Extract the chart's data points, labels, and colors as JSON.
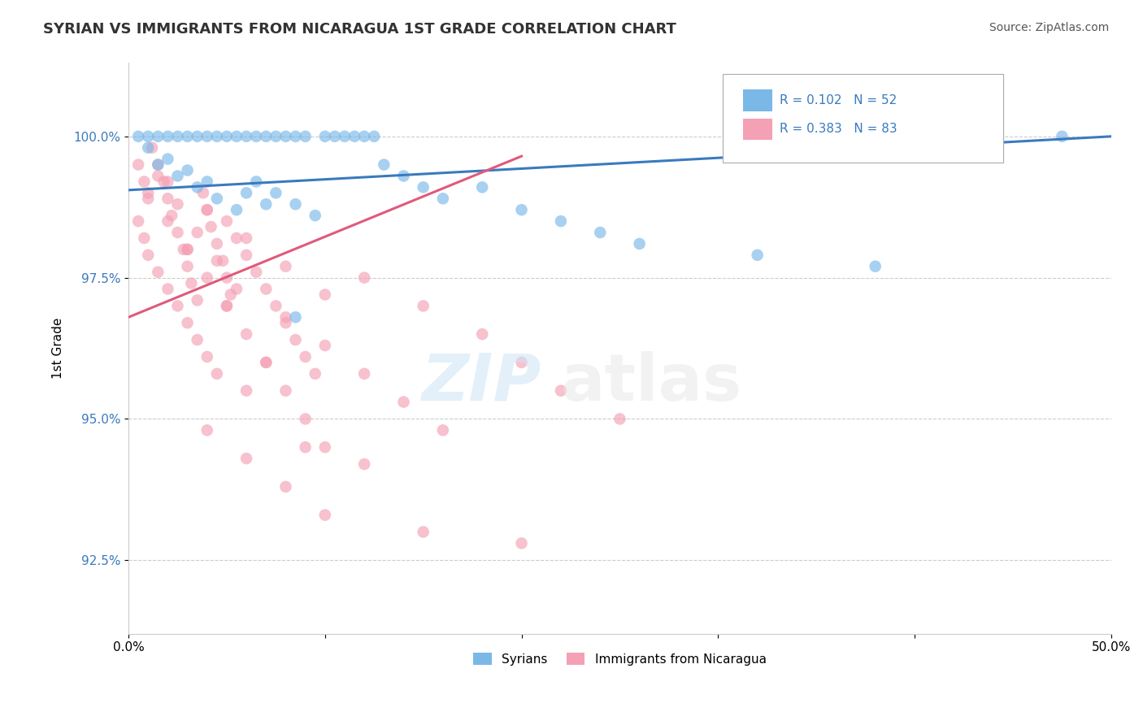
{
  "title": "SYRIAN VS IMMIGRANTS FROM NICARAGUA 1ST GRADE CORRELATION CHART",
  "source": "Source: ZipAtlas.com",
  "ylabel": "1st Grade",
  "xlim": [
    0.0,
    0.5
  ],
  "ylim": [
    91.2,
    101.3
  ],
  "yticks": [
    92.5,
    95.0,
    97.5,
    100.0
  ],
  "ytick_labels": [
    "92.5%",
    "95.0%",
    "97.5%",
    "100.0%"
  ],
  "xticks": [
    0.0,
    0.1,
    0.2,
    0.3,
    0.4,
    0.5
  ],
  "xtick_labels": [
    "0.0%",
    "",
    "",
    "",
    "",
    "50.0%"
  ],
  "legend_label1": "Syrians",
  "legend_label2": "Immigrants from Nicaragua",
  "blue_color": "#7ab8e8",
  "pink_color": "#f4a0b5",
  "blue_line_color": "#3a7abf",
  "pink_line_color": "#e05a7a",
  "blue_line_x": [
    0.0,
    0.5
  ],
  "blue_line_y": [
    99.05,
    100.0
  ],
  "pink_line_x": [
    0.0,
    0.2
  ],
  "pink_line_y": [
    96.8,
    99.65
  ],
  "blue_scatter_x": [
    0.005,
    0.01,
    0.015,
    0.02,
    0.025,
    0.03,
    0.035,
    0.04,
    0.045,
    0.05,
    0.055,
    0.06,
    0.065,
    0.07,
    0.075,
    0.08,
    0.085,
    0.09,
    0.1,
    0.105,
    0.11,
    0.115,
    0.12,
    0.125,
    0.13,
    0.14,
    0.15,
    0.16,
    0.18,
    0.2,
    0.22,
    0.24,
    0.26,
    0.32,
    0.38,
    0.475,
    0.015,
    0.025,
    0.035,
    0.045,
    0.055,
    0.065,
    0.075,
    0.085,
    0.095,
    0.01,
    0.02,
    0.03,
    0.04,
    0.06,
    0.07,
    0.085
  ],
  "blue_scatter_y": [
    100.0,
    100.0,
    100.0,
    100.0,
    100.0,
    100.0,
    100.0,
    100.0,
    100.0,
    100.0,
    100.0,
    100.0,
    100.0,
    100.0,
    100.0,
    100.0,
    100.0,
    100.0,
    100.0,
    100.0,
    100.0,
    100.0,
    100.0,
    100.0,
    99.5,
    99.3,
    99.1,
    98.9,
    99.1,
    98.7,
    98.5,
    98.3,
    98.1,
    97.9,
    97.7,
    100.0,
    99.5,
    99.3,
    99.1,
    98.9,
    98.7,
    99.2,
    99.0,
    98.8,
    98.6,
    99.8,
    99.6,
    99.4,
    99.2,
    99.0,
    98.8,
    96.8
  ],
  "pink_scatter_x": [
    0.005,
    0.008,
    0.01,
    0.012,
    0.015,
    0.018,
    0.02,
    0.022,
    0.025,
    0.028,
    0.03,
    0.032,
    0.035,
    0.038,
    0.04,
    0.042,
    0.045,
    0.048,
    0.05,
    0.052,
    0.005,
    0.008,
    0.01,
    0.015,
    0.02,
    0.025,
    0.03,
    0.035,
    0.04,
    0.045,
    0.05,
    0.055,
    0.06,
    0.065,
    0.07,
    0.075,
    0.08,
    0.085,
    0.09,
    0.095,
    0.01,
    0.02,
    0.03,
    0.04,
    0.05,
    0.06,
    0.07,
    0.08,
    0.09,
    0.1,
    0.015,
    0.025,
    0.035,
    0.045,
    0.055,
    0.12,
    0.15,
    0.18,
    0.2,
    0.22,
    0.25,
    0.08,
    0.1,
    0.12,
    0.14,
    0.16,
    0.03,
    0.05,
    0.07,
    0.06,
    0.09,
    0.12,
    0.04,
    0.06,
    0.08,
    0.1,
    0.15,
    0.2,
    0.02,
    0.04,
    0.06,
    0.08,
    0.1
  ],
  "pink_scatter_y": [
    99.5,
    99.2,
    98.9,
    99.8,
    99.5,
    99.2,
    98.9,
    98.6,
    98.3,
    98.0,
    97.7,
    97.4,
    97.1,
    99.0,
    98.7,
    98.4,
    98.1,
    97.8,
    97.5,
    97.2,
    98.5,
    98.2,
    97.9,
    97.6,
    97.3,
    97.0,
    96.7,
    96.4,
    96.1,
    95.8,
    98.5,
    98.2,
    97.9,
    97.6,
    97.3,
    97.0,
    96.7,
    96.4,
    96.1,
    95.8,
    99.0,
    98.5,
    98.0,
    97.5,
    97.0,
    96.5,
    96.0,
    95.5,
    95.0,
    94.5,
    99.3,
    98.8,
    98.3,
    97.8,
    97.3,
    97.5,
    97.0,
    96.5,
    96.0,
    95.5,
    95.0,
    96.8,
    96.3,
    95.8,
    95.3,
    94.8,
    98.0,
    97.0,
    96.0,
    95.5,
    94.5,
    94.2,
    94.8,
    94.3,
    93.8,
    93.3,
    93.0,
    92.8,
    99.2,
    98.7,
    98.2,
    97.7,
    97.2
  ]
}
